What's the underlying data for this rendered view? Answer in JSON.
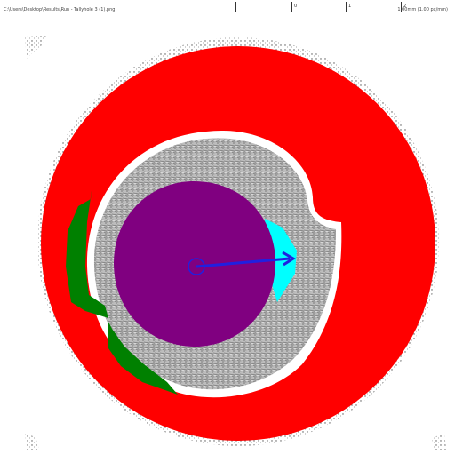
{
  "header": {
    "file_path": "C:\\Users\\Desktop\\Results\\Run - Tallyhole 3 (1).png",
    "scale_ticks": [
      "0",
      "1",
      "2"
    ],
    "resolution": "1.00mm (1.00 px/mm)"
  },
  "segmentation": {
    "classes": [
      {
        "name": "outer-ring",
        "color": "#ff0000"
      },
      {
        "name": "left-band",
        "color": "#008000"
      },
      {
        "name": "inner-lumen",
        "color": "#800080"
      },
      {
        "name": "cyan-region",
        "color": "#00ffff"
      }
    ],
    "arrow_color": "#2020e0",
    "background_texture": "grayscale-tissue"
  }
}
